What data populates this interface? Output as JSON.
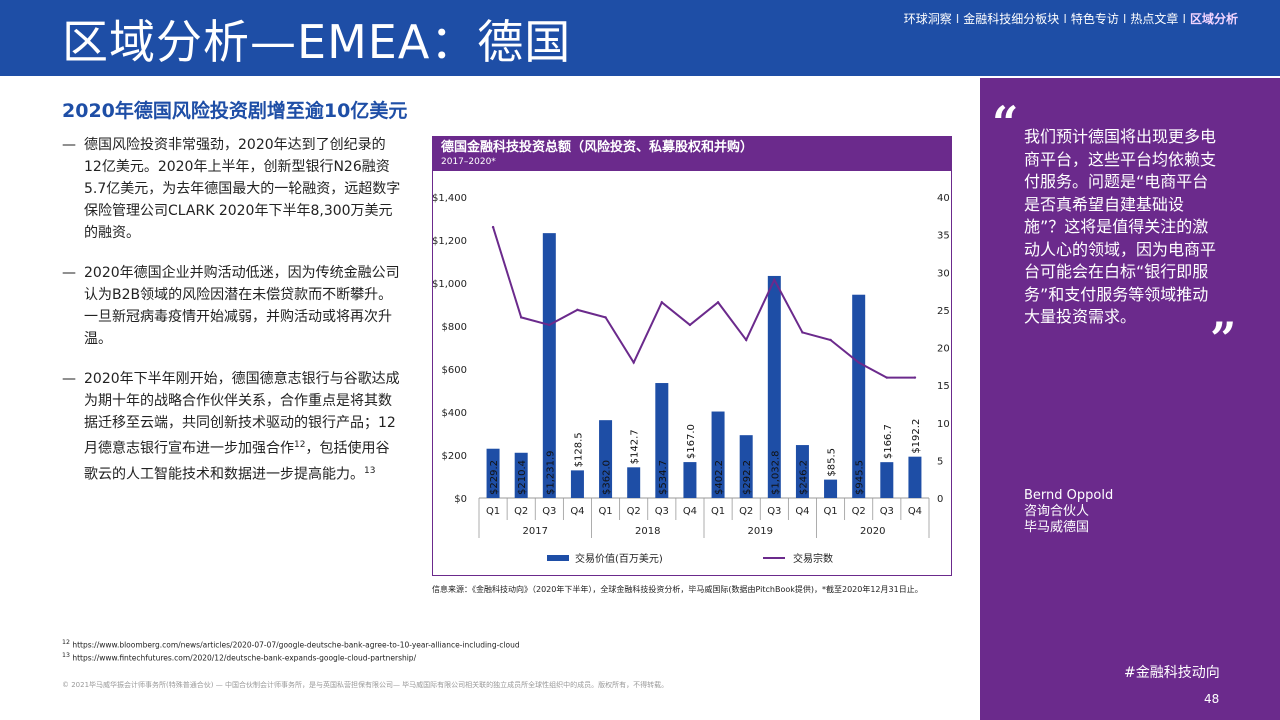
{
  "header": {
    "title": "区域分析—EMEA：德国",
    "nav": [
      "环球洞察",
      "金融科技细分板块",
      "特色专访",
      "热点文章",
      "区域分析"
    ],
    "nav_separator": "I",
    "background_color": "#1e4ea6"
  },
  "section_title": "2020年德国风险投资剧增至逾10亿美元",
  "bullets": [
    {
      "dash": "—",
      "text": "德国风险投资非常强劲，2020年达到了创纪录的12亿美元。2020年上半年，创新型银行N26融资5.7亿美元，为去年德国最大的一轮融资，远超数字保险管理公司CLARK 2020年下半年8,300万美元的融资。"
    },
    {
      "dash": "—",
      "text": "2020年德国企业并购活动低迷，因为传统金融公司认为B2B领域的风险因潜在未偿贷款而不断攀升。一旦新冠病毒疫情开始减弱，并购活动或将再次升温。"
    },
    {
      "dash": "—",
      "text_a": "2020年下半年刚开始，德国德意志银行与谷歌达成为期十年的战略合作伙伴关系，合作重点是将其数据迁移至云端，共同创新技术驱动的银行产品；12月德意志银行宣布进一步加强合作",
      "sup_a": "12",
      "text_b": "，包括使用谷歌云的人工智能技术和数据进一步提高能力。",
      "sup_b": "13"
    }
  ],
  "chart_data": {
    "type": "bar",
    "title": "德国金融科技投资总额（风险投资、私募股权和并购）",
    "subtitle": "2017–2020*",
    "categories": [
      "Q1",
      "Q2",
      "Q3",
      "Q4",
      "Q1",
      "Q2",
      "Q3",
      "Q4",
      "Q1",
      "Q2",
      "Q3",
      "Q4",
      "Q1",
      "Q2",
      "Q3",
      "Q4"
    ],
    "years": [
      "2017",
      "2018",
      "2019",
      "2020"
    ],
    "series": [
      {
        "name": "交易价值(百万美元)",
        "kind": "bar",
        "axis": "left",
        "color": "#1e4ea6",
        "values": [
          229.2,
          210.4,
          1231.9,
          128.5,
          362.0,
          142.7,
          534.7,
          167.0,
          402.2,
          292.2,
          1032.8,
          246.2,
          85.5,
          945.5,
          166.7,
          192.2
        ],
        "labels": [
          "$229.2",
          "$210.4",
          "$1,231.9",
          "$128.5",
          "$362.0",
          "$142.7",
          "$534.7",
          "$167.0",
          "$402.2",
          "$292.2",
          "$1,032.8",
          "$246.2",
          "$85.5",
          "$945.5",
          "$166.7",
          "$192.2"
        ]
      },
      {
        "name": "交易宗数",
        "kind": "line",
        "axis": "right",
        "color": "#6b2a8c",
        "values": [
          36,
          24,
          23,
          25,
          24,
          18,
          26,
          23,
          26,
          21,
          29,
          22,
          21,
          18,
          16,
          16
        ]
      }
    ],
    "y_left": {
      "ticks": [
        0,
        200,
        400,
        600,
        800,
        1000,
        1200,
        1400
      ],
      "tick_labels": [
        "$0",
        "$200",
        "$400",
        "$600",
        "$800",
        "$1,000",
        "$1,200",
        "$1,400"
      ],
      "range": [
        0,
        1400
      ]
    },
    "y_right": {
      "ticks": [
        0,
        5,
        10,
        15,
        20,
        25,
        30,
        35,
        40
      ],
      "range": [
        0,
        40
      ]
    },
    "grid": false,
    "legend_position": "bottom"
  },
  "source_note": "信息来源：《金融科技动向》（2020年下半年），全球金融科技投资分析，毕马威国际(数据由PitchBook提供)，*截至2020年12月31日止。",
  "footnotes": [
    {
      "num": "12",
      "url": "https://www.bloomberg.com/news/articles/2020-07-07/google-deutsche-bank-agree-to-10-year-alliance-including-cloud"
    },
    {
      "num": "13",
      "url": "https://www.fintechfutures.com/2020/12/deutsche-bank-expands-google-cloud-partnership/"
    }
  ],
  "copyright": "© 2021毕马威华振会计师事务所(特殊普通合伙) — 中国合伙制会计师事务所，是与英国私营担保有限公司— 毕马威国际有限公司相关联的独立成员所全球性组织中的成员。版权所有，不得转载。",
  "quote": {
    "open_mark": "“",
    "close_mark": "”",
    "text": "我们预计德国将出现更多电商平台，这些平台均依赖支付服务。问题是“电商平台是否真希望自建基础设施”？这将是值得关注的激动人心的领域，因为电商平台可能会在白标“银行即服务”和支付服务等领域推动大量投资需求。",
    "author_name": "Bernd Oppold",
    "author_role": "咨询合伙人",
    "author_org": "毕马威德国",
    "panel_color": "#6b2a8c"
  },
  "hashtag": "#金融科技动向",
  "page_number": "48"
}
